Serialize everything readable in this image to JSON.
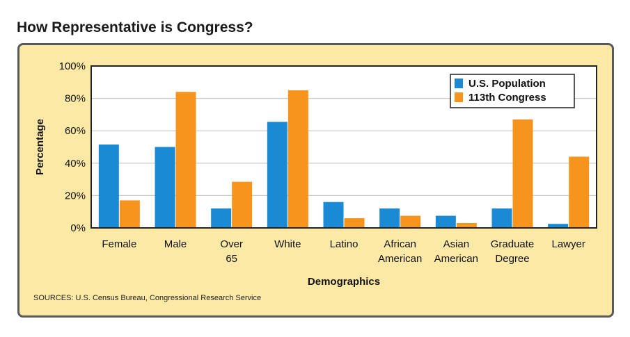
{
  "title": "How Representative is Congress?",
  "source": "SOURCES: U.S. Census Bureau, Congressional Research Service",
  "colors": {
    "us_population": "#1a8ad4",
    "congress": "#f7941d",
    "panel": "#fde9a6",
    "plot_bg": "#ffffff",
    "grid": "#c8c8c8"
  },
  "chart_data": {
    "type": "bar",
    "title": "How Representative is Congress?",
    "xlabel": "Demographics",
    "ylabel": "Percentage",
    "ylim": [
      0,
      100
    ],
    "yticks": [
      "0%",
      "20%",
      "40%",
      "60%",
      "80%",
      "100%"
    ],
    "ytick_values": [
      0,
      20,
      40,
      60,
      80,
      100
    ],
    "grid": true,
    "legend_position": "top-right",
    "categories": [
      [
        "Female"
      ],
      [
        "Male"
      ],
      [
        "Over",
        "65"
      ],
      [
        "White"
      ],
      [
        "Latino"
      ],
      [
        "African",
        "American"
      ],
      [
        "Asian",
        "American"
      ],
      [
        "Graduate",
        "Degree"
      ],
      [
        "Lawyer"
      ]
    ],
    "series": [
      {
        "name": "U.S. Population",
        "color": "#1a8ad4",
        "values": [
          51.5,
          50,
          12,
          65.5,
          16,
          12,
          7.5,
          12,
          2.5
        ]
      },
      {
        "name": "113th Congress",
        "color": "#f7941d",
        "values": [
          17,
          84,
          28.5,
          85,
          6,
          7.5,
          3,
          67,
          44
        ]
      }
    ]
  }
}
